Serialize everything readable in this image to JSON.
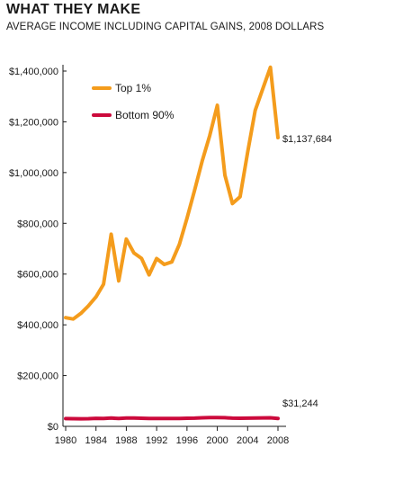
{
  "chart_data": {
    "type": "line",
    "title": "WHAT THEY MAKE",
    "subtitle": "AVERAGE INCOME INCLUDING CAPITAL GAINS, 2008 DOLLARS",
    "xlabel": "",
    "ylabel": "",
    "xlim": [
      1980,
      2008
    ],
    "ylim": [
      0,
      1400000
    ],
    "x_ticks": [
      "1980",
      "1984",
      "1988",
      "1992",
      "1996",
      "2000",
      "2004",
      "2008"
    ],
    "y_ticks": [
      "$0",
      "$200,000",
      "$400,000",
      "$600,000",
      "$800,000",
      "$1,000,000",
      "$1,200,000",
      "$1,400,000"
    ],
    "grid": false,
    "legend_position": "top-left",
    "x": [
      1980,
      1981,
      1982,
      1983,
      1984,
      1985,
      1986,
      1987,
      1988,
      1989,
      1990,
      1991,
      1992,
      1993,
      1994,
      1995,
      1996,
      1997,
      1998,
      1999,
      2000,
      2001,
      2002,
      2003,
      2004,
      2005,
      2006,
      2007,
      2008
    ],
    "series": [
      {
        "name": "Top 1%",
        "color": "#f49c1c",
        "values": [
          428000,
          423000,
          445000,
          475000,
          510000,
          560000,
          757000,
          573000,
          738000,
          683000,
          662000,
          597000,
          661000,
          638000,
          648000,
          717000,
          820000,
          930000,
          1045000,
          1145000,
          1265000,
          990000,
          878000,
          905000,
          1080000,
          1245000,
          1330000,
          1415000,
          1137684
        ],
        "end_label": "$1,137,684"
      },
      {
        "name": "Bottom 90%",
        "color": "#cc0a3c",
        "values": [
          30500,
          30000,
          29800,
          30200,
          31500,
          31200,
          32500,
          31000,
          32500,
          32800,
          31800,
          31000,
          31000,
          30800,
          31000,
          31300,
          31800,
          32300,
          33500,
          34500,
          34500,
          34000,
          32200,
          32000,
          32200,
          32500,
          33400,
          33800,
          31244
        ],
        "end_label": "$31,244"
      }
    ]
  }
}
